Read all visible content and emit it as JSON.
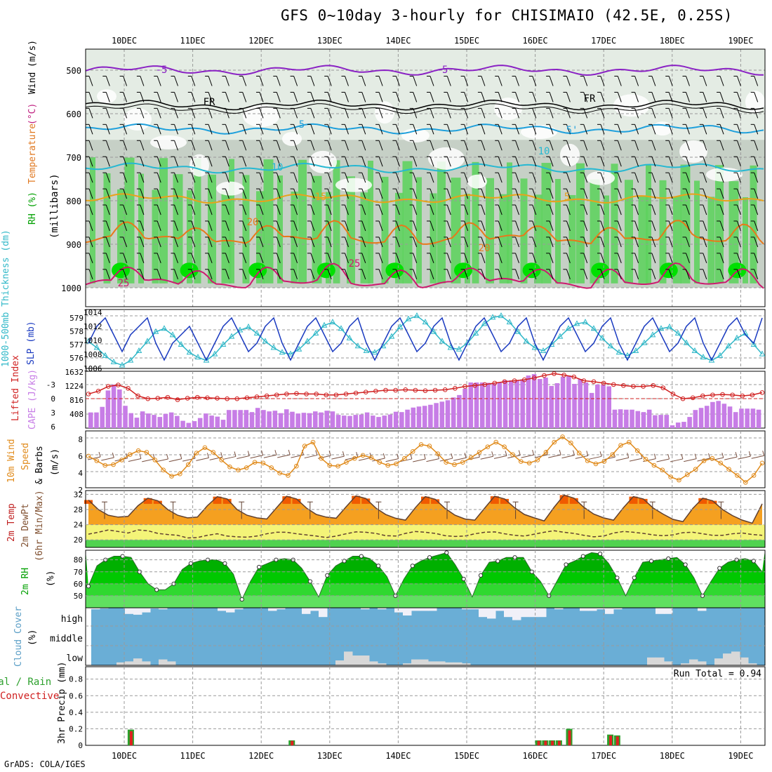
{
  "title": "GFS 0~10day 3-hourly for CHISIMAIO (42.5E, 0.25S)",
  "credit": "GrADS: COLA/IGES",
  "chart_data": {
    "type": "meteogram",
    "x_labels": [
      "10DEC",
      "11DEC",
      "12DEC",
      "13DEC",
      "14DEC",
      "15DEC",
      "16DEC",
      "17DEC",
      "18DEC",
      "19DEC"
    ],
    "panels": {
      "upper_air": {
        "ylabel_parts": [
          "RH (%)",
          "Temperature",
          "(°C)",
          "Wind",
          "(m/s)"
        ],
        "ylabel2": "(millibars)",
        "yticks": [
          "500",
          "600",
          "700",
          "800",
          "900",
          "1000"
        ],
        "contour_labels": [
          "-5",
          "-5",
          "FR",
          "FR",
          "5",
          "5'",
          "10",
          "10",
          "15",
          "5",
          "20",
          "20",
          "25",
          "25"
        ],
        "levels_mb": [
          500,
          580,
          635,
          725,
          795,
          890,
          990
        ],
        "level_names": [
          "-5",
          "FR",
          "5",
          "10",
          "15",
          "20",
          "25"
        ],
        "colors": {
          "minus5": "#8a22c4",
          "fr": "#000000",
          "c5": "#1fa0dc",
          "c10": "#26b8d2",
          "c15": "#e8a21a",
          "c20": "#e8781a",
          "c25": "#cc1a6e",
          "rh_hi": "#00e000",
          "rh_mid": "#5fd25f",
          "rh_lo": "#9ab09a",
          "rh_vlo": "#c6d0c6",
          "rh_low": "#e4ece4"
        }
      },
      "slp_thickness": {
        "ylabel_left": "1000-500mb Thickness (dm)",
        "ylabel_right": "SLP (mb)",
        "yticks_left": [
          "579",
          "578",
          "577",
          "576"
        ],
        "yticks_right": [
          "1014",
          "1012",
          "1010",
          "1008",
          "1006"
        ],
        "slp_mb": [
          1010,
          1012,
          1013,
          1011,
          1009,
          1011,
          1012,
          1013,
          1010,
          1008,
          1010,
          1011,
          1012,
          1010,
          1008,
          1010,
          1012,
          1013,
          1011,
          1009,
          1010,
          1012,
          1013,
          1010,
          1008,
          1010,
          1012,
          1013,
          1011,
          1009,
          1010,
          1012,
          1013,
          1010,
          1008,
          1010,
          1012,
          1013,
          1011,
          1009,
          1010,
          1012,
          1013,
          1010,
          1008,
          1010,
          1012,
          1013,
          1011,
          1009,
          1010,
          1012,
          1013,
          1010,
          1008,
          1010,
          1012,
          1013,
          1011,
          1009,
          1010,
          1012,
          1013,
          1010,
          1008,
          1010,
          1012,
          1013,
          1011,
          1009,
          1010,
          1012,
          1013,
          1010,
          1008,
          1010,
          1012,
          1013,
          1011,
          1010,
          1013
        ],
        "thickness_dm": [
          577.2,
          576.8,
          576.3,
          575.9,
          575.7,
          576.0,
          576.6,
          577.2,
          577.8,
          578.0,
          577.6,
          577.0,
          576.5,
          576.2,
          576.0,
          576.4,
          577.0,
          577.5,
          577.9,
          578.1,
          577.7,
          577.2,
          576.8,
          576.5,
          576.4,
          576.7,
          577.2,
          577.7,
          578.2,
          578.4,
          578.0,
          577.4,
          576.9,
          576.6,
          576.5,
          576.9,
          577.5,
          578.1,
          578.6,
          578.8,
          578.4,
          577.8,
          577.2,
          576.8,
          576.7,
          577.1,
          577.7,
          578.3,
          578.7,
          578.8,
          578.4,
          577.8,
          577.2,
          576.8,
          576.6,
          577.0,
          577.5,
          578.0,
          578.3,
          578.4,
          578.0,
          577.4,
          576.9,
          576.5,
          576.3,
          576.6,
          577.1,
          577.6,
          578.0,
          578.1,
          577.7,
          577.1,
          576.6,
          576.2,
          576.0,
          576.3,
          576.9,
          577.4,
          577.7,
          577.0,
          576.4
        ]
      },
      "cape_li": {
        "ylabel_left": "Lifted Index",
        "ylabel_right": "CAPE (J/kg)",
        "yticks_left": [
          "-3",
          "0",
          "3",
          "6"
        ],
        "yticks_right": [
          "1632",
          "1224",
          "816",
          "408"
        ],
        "cape_jkg": [
          450,
          450,
          610,
          1080,
          1250,
          1110,
          640,
          430,
          300,
          480,
          420,
          380,
          320,
          410,
          450,
          350,
          210,
          150,
          200,
          290,
          420,
          360,
          330,
          240,
          520,
          520,
          520,
          520,
          460,
          580,
          520,
          480,
          500,
          430,
          540,
          470,
          420,
          440,
          430,
          480,
          450,
          500,
          480,
          380,
          360,
          350,
          380,
          390,
          450,
          360,
          320,
          360,
          390,
          470,
          460,
          530,
          590,
          620,
          640,
          670,
          720,
          760,
          800,
          880,
          950,
          1130,
          1310,
          1310,
          1310,
          1300,
          1270,
          1310,
          1370,
          1370,
          1380,
          1400,
          1510,
          1550,
          1410,
          1450,
          1210,
          1290,
          1480,
          1510,
          1270,
          1410,
          1310,
          1010,
          1250,
          1250,
          1200,
          530,
          540,
          530,
          530,
          490,
          460,
          530,
          370,
          380,
          380,
          80,
          160,
          180,
          320,
          520,
          580,
          640,
          750,
          780,
          700,
          620,
          460,
          560,
          560,
          560,
          530
        ],
        "li": [
          -1.2,
          -1.8,
          -2.8,
          -3.1,
          -2.4,
          -0.8,
          -0.2,
          -0.3,
          -0.5,
          0,
          -0.3,
          -0.5,
          -0.4,
          -0.3,
          -0.2,
          -0.2,
          -0.4,
          -0.6,
          -0.8,
          -1.0,
          -1.2,
          -1.3,
          -1.2,
          -1.2,
          -1.0,
          -1.0,
          -1.2,
          -1.4,
          -1.6,
          -1.8,
          -2.0,
          -2.0,
          -2.1,
          -2.0,
          -1.9,
          -2.0,
          -2.1,
          -2.4,
          -2.8,
          -3.0,
          -3.2,
          -3.5,
          -3.8,
          -4.0,
          -4.2,
          -4.6,
          -5.1,
          -5.5,
          -5.2,
          -4.8,
          -4.0,
          -3.8,
          -3.5,
          -3.2,
          -3.0,
          -2.8,
          -2.8,
          -3.0,
          -2.5,
          -1.2,
          -0.2,
          -0.4,
          -0.8,
          -1.0,
          -1.1,
          -1.0,
          -0.8,
          -1.0,
          -1.5
        ],
        "colors": {
          "cape": "#c77de6",
          "li": "#d02020"
        }
      },
      "wind10m": {
        "ylabel_parts": [
          "10m Wind",
          "Speed",
          "& Barbs",
          "(m/s)"
        ],
        "yticks": [
          "8",
          "6",
          "4",
          "2"
        ],
        "speed_ms": [
          6.1,
          5.5,
          4.9,
          5.0,
          5.6,
          6.3,
          6.8,
          6.6,
          5.6,
          4.3,
          3.5,
          3.8,
          5.0,
          6.5,
          7.2,
          6.6,
          5.6,
          4.7,
          4.3,
          4.6,
          5.3,
          5.2,
          4.6,
          3.9,
          3.6,
          4.8,
          7.4,
          7.9,
          5.8,
          4.9,
          4.8,
          5.3,
          5.8,
          6.2,
          5.9,
          5.3,
          4.9,
          5.1,
          5.8,
          6.7,
          7.6,
          7.4,
          6.4,
          5.3,
          5.0,
          5.3,
          5.9,
          6.6,
          7.3,
          7.9,
          7.3,
          6.3,
          5.4,
          5.2,
          5.6,
          6.6,
          7.9,
          8.6,
          7.8,
          6.5,
          5.5,
          5.1,
          5.4,
          6.3,
          7.5,
          7.9,
          6.8,
          5.7,
          4.9,
          4.3,
          3.4,
          3.0,
          3.7,
          4.4,
          5.5,
          5.8,
          5.2,
          4.4,
          3.6,
          2.7,
          3.6,
          5.2
        ],
        "colors": {
          "speed": "#e08a1a",
          "barb": "#7a5040"
        }
      },
      "temp2m": {
        "ylabel_parts": [
          "2m Temp",
          "2m DewPt",
          "(6hr Min/Max)"
        ],
        "yticks": [
          "32",
          "28",
          "24",
          "20"
        ],
        "temp_c": [
          30.5,
          28.0,
          26.5,
          26.0,
          26.2,
          29.0,
          31.0,
          30.3,
          28.0,
          26.5,
          25.8,
          26.0,
          29.0,
          31.4,
          30.8,
          28.0,
          26.5,
          25.8,
          25.5,
          28.5,
          31.5,
          30.8,
          28.4,
          26.7,
          26.0,
          25.7,
          28.7,
          31.6,
          30.9,
          28.4,
          26.7,
          25.7,
          25.2,
          28.5,
          31.4,
          30.7,
          28.3,
          26.5,
          25.5,
          25.2,
          28.4,
          31.5,
          30.8,
          28.5,
          26.7,
          25.8,
          25.0,
          28.6,
          31.8,
          31.0,
          28.6,
          26.8,
          25.8,
          25.2,
          28.5,
          31.4,
          30.8,
          28.4,
          26.8,
          25.4,
          24.8,
          28.3,
          31.0,
          30.3,
          28.0,
          26.4,
          25.2,
          24.4,
          29.5
        ],
        "dewpt_c": [
          21.5,
          22.0,
          22.6,
          22.2,
          21.8,
          22.6,
          22.4,
          21.7,
          21.4,
          21.2,
          20.5,
          20.6,
          21.2,
          21.6,
          21.0,
          20.8,
          20.7,
          21.0,
          21.6,
          22.0,
          22.0,
          21.6,
          21.3,
          21.0,
          20.6,
          21.0,
          21.6,
          22.1,
          22.0,
          21.7,
          21.1,
          21.0,
          21.7,
          22.2,
          22.0,
          21.7,
          21.1,
          20.9,
          21.0,
          21.6,
          22.0,
          22.1,
          21.6,
          21.2,
          21.0,
          21.5,
          22.0,
          22.4,
          22.0,
          21.7,
          21.2,
          20.8,
          21.0,
          21.8,
          22.2,
          22.0,
          21.7,
          21.3,
          21.1,
          21.3,
          21.9,
          22.0,
          21.6,
          21.2,
          21.2,
          21.6,
          21.8,
          21.4,
          21.2
        ],
        "colors": {
          "hot": "#f05a00",
          "warm": "#f5a020",
          "mid": "#f8c040",
          "dew": "#f4f478",
          "base": "#50d250",
          "line": "#604030"
        }
      },
      "rh2m": {
        "ylabel": "2m RH",
        "ylabel2": "(%)",
        "yticks": [
          "80",
          "70",
          "60",
          "50"
        ],
        "rh_pct": [
          58,
          75,
          80,
          83,
          83,
          82,
          70,
          60,
          55,
          55,
          60,
          72,
          77,
          79,
          80,
          80,
          77,
          68,
          47,
          62,
          74,
          77,
          80,
          81,
          80,
          73,
          62,
          49,
          67,
          75,
          79,
          83,
          83,
          81,
          75,
          66,
          50,
          64,
          75,
          79,
          82,
          84,
          86,
          76,
          64,
          49,
          67,
          78,
          79,
          82,
          82,
          82,
          70,
          62,
          50,
          63,
          76,
          79,
          83,
          86,
          85,
          77,
          65,
          50,
          65,
          78,
          79,
          80,
          81,
          82,
          76,
          65,
          50,
          62,
          73,
          78,
          80,
          81,
          79,
          70
        ],
        "colors": {
          "top": "#00b000",
          "mid": "#00c800",
          "low": "#30d830",
          "base": "#60e060"
        }
      },
      "cloud": {
        "ylabel": "Cloud Cover",
        "ylabel2": "(%)",
        "labels": [
          "high",
          "middle",
          "low"
        ],
        "high_pct": [
          90,
          95,
          100,
          100,
          60,
          55,
          70,
          95,
          90,
          100,
          100,
          100,
          100,
          100,
          100,
          80,
          70,
          90,
          100,
          100,
          100,
          80,
          90,
          100,
          100,
          60,
          80,
          40,
          100,
          100,
          100,
          100,
          90,
          100,
          90,
          100,
          70,
          50,
          80,
          80,
          80,
          100,
          100,
          100,
          90,
          90,
          40,
          30,
          80,
          40,
          20,
          40,
          40,
          40,
          100,
          90,
          100,
          100,
          80,
          80,
          90,
          60,
          90,
          100,
          100,
          100,
          100,
          60,
          60,
          100,
          100,
          100,
          80,
          100,
          100,
          100,
          100,
          100,
          100,
          100
        ],
        "low_pct": [
          0,
          0,
          0,
          15,
          20,
          35,
          20,
          0,
          30,
          20,
          0,
          0,
          0,
          0,
          0,
          0,
          0,
          0,
          0,
          0,
          0,
          0,
          0,
          0,
          0,
          0,
          0,
          0,
          0,
          25,
          70,
          50,
          50,
          20,
          10,
          0,
          0,
          10,
          30,
          30,
          20,
          20,
          15,
          15,
          10,
          0,
          0,
          0,
          0,
          0,
          0,
          0,
          0,
          0,
          0,
          0,
          0,
          0,
          0,
          0,
          0,
          0,
          0,
          0,
          0,
          0,
          40,
          40,
          20,
          0,
          10,
          30,
          20,
          0,
          35,
          60,
          70,
          40,
          10,
          0
        ],
        "colors": {
          "sky": "#6aaed6",
          "cloud": "#f0f0f8",
          "low": "#d8d8d8"
        }
      },
      "precip": {
        "ylabel_parts": [
          "Total / Rain",
          "Convective"
        ],
        "ylabel2": "3hr Precip (mm)",
        "yticks": [
          "0.8",
          "0.6",
          "0.4",
          "0.2",
          "0"
        ],
        "run_total_label": "Run Total = 0.94",
        "bars_mm": [
          {
            "day": 10,
            "offset": 0.05,
            "total": 0.19
          },
          {
            "day": 12,
            "offset": 0.4,
            "total": 0.06
          },
          {
            "day": 16,
            "offset": 0.0,
            "total": 0.06
          },
          {
            "day": 16,
            "offset": 0.1,
            "total": 0.06
          },
          {
            "day": 16,
            "offset": 0.2,
            "total": 0.06
          },
          {
            "day": 16,
            "offset": 0.3,
            "total": 0.06
          },
          {
            "day": 16,
            "offset": 0.45,
            "total": 0.2
          },
          {
            "day": 17,
            "offset": 0.05,
            "total": 0.13
          },
          {
            "day": 17,
            "offset": 0.15,
            "total": 0.12
          }
        ],
        "colors": {
          "total": "#2ca02c",
          "conv": "#e02020"
        }
      }
    }
  }
}
